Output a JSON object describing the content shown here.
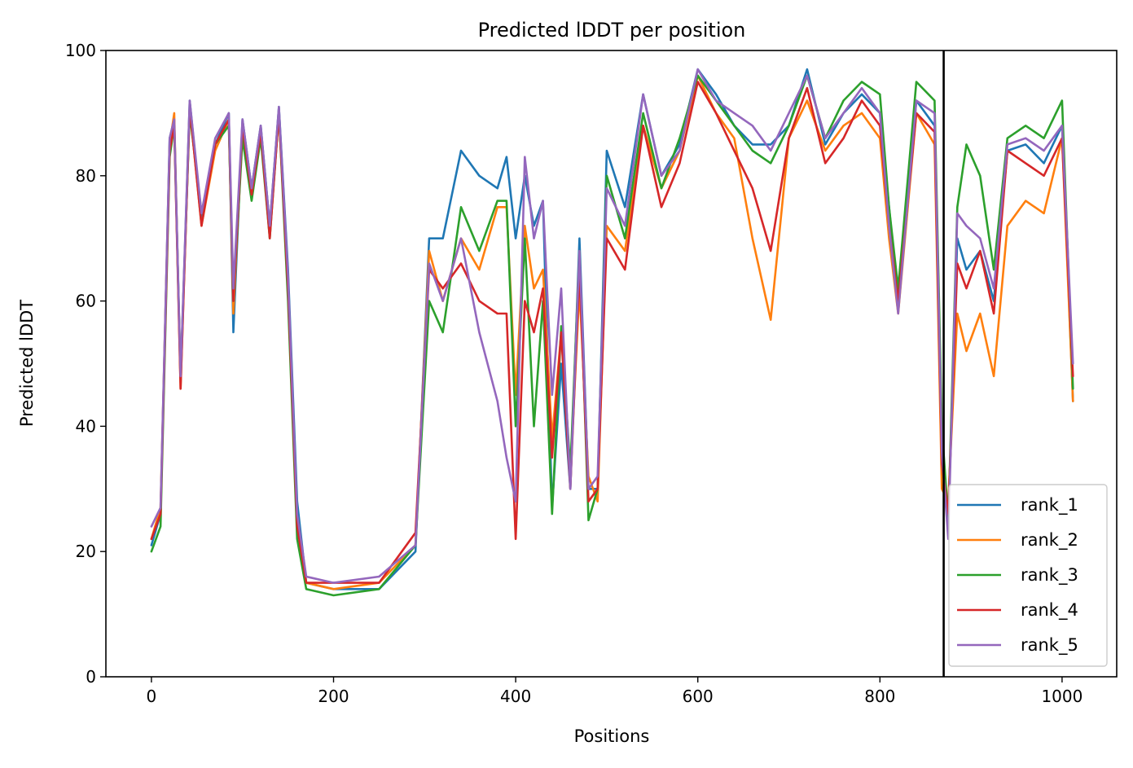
{
  "chart_data": {
    "type": "line",
    "title": "Predicted lDDT per position",
    "xlabel": "Positions",
    "ylabel": "Predicted lDDT",
    "xlim": [
      -50,
      1060
    ],
    "ylim": [
      0,
      100
    ],
    "xticks": [
      "0",
      "200",
      "400",
      "600",
      "800",
      "1000"
    ],
    "yticks": [
      "0",
      "20",
      "40",
      "60",
      "80",
      "100"
    ],
    "vline_x": 870,
    "legend_position": "lower-right",
    "grid": false,
    "series": [
      {
        "name": "rank_1",
        "color": "#1f77b4",
        "x": [
          0,
          10,
          20,
          25,
          32,
          42,
          55,
          70,
          85,
          90,
          100,
          110,
          120,
          130,
          140,
          150,
          160,
          170,
          200,
          250,
          290,
          305,
          320,
          340,
          360,
          380,
          390,
          400,
          410,
          420,
          430,
          440,
          450,
          460,
          470,
          480,
          490,
          500,
          520,
          540,
          560,
          580,
          600,
          620,
          640,
          660,
          680,
          700,
          720,
          740,
          760,
          780,
          800,
          810,
          820,
          840,
          860,
          868,
          875,
          885,
          895,
          910,
          925,
          940,
          960,
          980,
          1000,
          1012
        ],
        "y": [
          21,
          26,
          86,
          89,
          47,
          92,
          73,
          85,
          90,
          55,
          89,
          78,
          88,
          72,
          91,
          65,
          28,
          15,
          14,
          14,
          20,
          70,
          70,
          84,
          80,
          78,
          83,
          70,
          80,
          72,
          76,
          27,
          50,
          30,
          70,
          30,
          30,
          84,
          75,
          93,
          80,
          85,
          97,
          93,
          88,
          85,
          85,
          88,
          97,
          85,
          90,
          93,
          90,
          75,
          60,
          92,
          88,
          35,
          25,
          70,
          65,
          68,
          60,
          84,
          85,
          82,
          88,
          44
        ]
      },
      {
        "name": "rank_2",
        "color": "#ff7f0e",
        "x": [
          0,
          10,
          20,
          25,
          32,
          42,
          55,
          70,
          85,
          90,
          100,
          110,
          120,
          130,
          140,
          150,
          160,
          170,
          200,
          250,
          290,
          305,
          320,
          340,
          360,
          380,
          390,
          400,
          410,
          420,
          430,
          440,
          450,
          460,
          470,
          480,
          490,
          500,
          520,
          540,
          560,
          580,
          600,
          620,
          640,
          660,
          680,
          700,
          720,
          740,
          760,
          780,
          800,
          810,
          820,
          840,
          860,
          868,
          875,
          885,
          895,
          910,
          925,
          940,
          960,
          980,
          1000,
          1012
        ],
        "y": [
          22,
          27,
          85,
          90,
          46,
          91,
          72,
          84,
          89,
          58,
          88,
          77,
          87,
          71,
          90,
          62,
          25,
          15,
          14,
          15,
          21,
          68,
          60,
          70,
          65,
          75,
          75,
          45,
          72,
          62,
          65,
          38,
          55,
          32,
          62,
          32,
          28,
          72,
          68,
          88,
          78,
          84,
          96,
          90,
          86,
          70,
          57,
          86,
          92,
          84,
          88,
          90,
          86,
          70,
          58,
          90,
          85,
          30,
          28,
          58,
          52,
          58,
          48,
          72,
          76,
          74,
          86,
          44
        ]
      },
      {
        "name": "rank_3",
        "color": "#2ca02c",
        "x": [
          0,
          10,
          20,
          25,
          32,
          42,
          55,
          70,
          85,
          90,
          100,
          110,
          120,
          130,
          140,
          150,
          160,
          170,
          200,
          250,
          290,
          305,
          320,
          340,
          360,
          380,
          390,
          400,
          410,
          420,
          430,
          440,
          450,
          460,
          470,
          480,
          490,
          500,
          520,
          540,
          560,
          580,
          600,
          620,
          640,
          660,
          680,
          700,
          720,
          740,
          760,
          780,
          800,
          810,
          820,
          840,
          860,
          868,
          875,
          885,
          895,
          910,
          925,
          940,
          960,
          980,
          1000,
          1012
        ],
        "y": [
          20,
          24,
          83,
          88,
          48,
          90,
          74,
          85,
          88,
          60,
          86,
          76,
          86,
          70,
          90,
          60,
          22,
          14,
          13,
          14,
          21,
          60,
          55,
          75,
          68,
          76,
          76,
          40,
          70,
          40,
          60,
          26,
          56,
          33,
          68,
          25,
          30,
          80,
          70,
          90,
          78,
          86,
          96,
          92,
          88,
          84,
          82,
          88,
          96,
          86,
          92,
          95,
          93,
          75,
          62,
          95,
          92,
          40,
          25,
          75,
          85,
          80,
          65,
          86,
          88,
          86,
          92,
          46
        ]
      },
      {
        "name": "rank_4",
        "color": "#d62728",
        "x": [
          0,
          10,
          20,
          25,
          32,
          42,
          55,
          70,
          85,
          90,
          100,
          110,
          120,
          130,
          140,
          150,
          160,
          170,
          200,
          250,
          290,
          305,
          320,
          340,
          360,
          380,
          390,
          400,
          410,
          420,
          430,
          440,
          450,
          460,
          470,
          480,
          490,
          500,
          520,
          540,
          560,
          580,
          600,
          620,
          640,
          660,
          680,
          700,
          720,
          740,
          760,
          780,
          800,
          810,
          820,
          840,
          860,
          868,
          875,
          885,
          895,
          910,
          925,
          940,
          960,
          980,
          1000,
          1012
        ],
        "y": [
          22,
          26,
          84,
          88,
          46,
          91,
          72,
          85,
          89,
          60,
          88,
          77,
          87,
          70,
          90,
          62,
          24,
          15,
          15,
          15,
          23,
          65,
          62,
          66,
          60,
          58,
          58,
          22,
          60,
          55,
          62,
          35,
          55,
          30,
          65,
          28,
          30,
          70,
          65,
          88,
          75,
          82,
          95,
          90,
          84,
          78,
          68,
          86,
          94,
          82,
          86,
          92,
          88,
          72,
          60,
          90,
          87,
          34,
          26,
          66,
          62,
          68,
          58,
          84,
          82,
          80,
          86,
          48
        ]
      },
      {
        "name": "rank_5",
        "color": "#9467bd",
        "x": [
          0,
          10,
          20,
          25,
          32,
          42,
          55,
          70,
          85,
          90,
          100,
          110,
          120,
          130,
          140,
          150,
          160,
          170,
          200,
          250,
          290,
          305,
          320,
          340,
          360,
          380,
          390,
          400,
          410,
          420,
          430,
          440,
          450,
          460,
          470,
          480,
          490,
          500,
          520,
          540,
          560,
          580,
          600,
          620,
          640,
          660,
          680,
          700,
          720,
          740,
          760,
          780,
          800,
          810,
          820,
          840,
          860,
          868,
          875,
          885,
          895,
          910,
          925,
          940,
          960,
          980,
          1000,
          1012
        ],
        "y": [
          24,
          27,
          86,
          89,
          48,
          92,
          74,
          86,
          90,
          62,
          89,
          78,
          88,
          72,
          91,
          64,
          26,
          16,
          15,
          16,
          21,
          66,
          60,
          70,
          55,
          44,
          35,
          28,
          83,
          70,
          76,
          45,
          62,
          30,
          68,
          30,
          32,
          78,
          72,
          93,
          80,
          84,
          97,
          92,
          90,
          88,
          84,
          90,
          96,
          86,
          90,
          94,
          90,
          72,
          58,
          92,
          90,
          36,
          22,
          74,
          72,
          70,
          62,
          85,
          86,
          84,
          88,
          50
        ]
      }
    ]
  }
}
